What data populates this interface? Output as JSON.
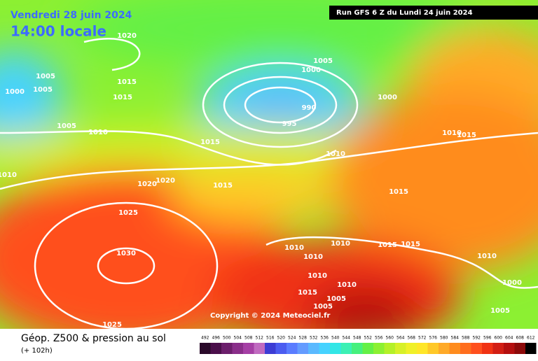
{
  "header": {
    "date": "Vendredi 28 juin 2024",
    "time": "14:00 locale",
    "run": "Run GFS 6 Z du Lundi 24 juin 2024"
  },
  "map": {
    "copyright": "Copyright © 2024 Meteociel.fr",
    "isobar_labels": [
      "1020",
      "1005",
      "1005",
      "1000",
      "1015",
      "1015",
      "1005",
      "1010",
      "1005",
      "1000",
      "990",
      "995",
      "1000",
      "1015",
      "1010",
      "1010",
      "1020",
      "1020",
      "1015",
      "1015",
      "1025",
      "1030",
      "1010",
      "1010",
      "1015",
      "1015",
      "1010",
      "1010",
      "1010",
      "1015",
      "1005",
      "1005",
      "1025",
      "1010",
      "1015",
      "1010",
      "1000",
      "1005"
    ]
  },
  "footer": {
    "title": "Géop. Z500 & pression au sol",
    "subtitle": "(+ 102h)"
  },
  "legend": {
    "values": [
      492,
      496,
      500,
      504,
      508,
      512,
      516,
      520,
      524,
      528,
      532,
      536,
      540,
      544,
      548,
      552,
      556,
      560,
      564,
      568,
      572,
      576,
      580,
      584,
      588,
      592,
      596,
      600,
      604,
      608,
      612
    ],
    "colors": [
      "#2a0a2a",
      "#4b0f4b",
      "#6c1e6c",
      "#8a2e8a",
      "#a53fa5",
      "#c06ac0",
      "#3c3cd4",
      "#4b5cf0",
      "#5a7cff",
      "#649bff",
      "#5ab9ff",
      "#46d2ff",
      "#32e6e6",
      "#3cf0b4",
      "#46f07d",
      "#64f046",
      "#8cf032",
      "#b4f028",
      "#d7f028",
      "#f0f028",
      "#ffe628",
      "#ffc828",
      "#ffaa28",
      "#ff8c1e",
      "#ff6e1e",
      "#ff501e",
      "#f03214",
      "#d21e14",
      "#b40f0f",
      "#8c0a0a",
      "#000000"
    ]
  }
}
